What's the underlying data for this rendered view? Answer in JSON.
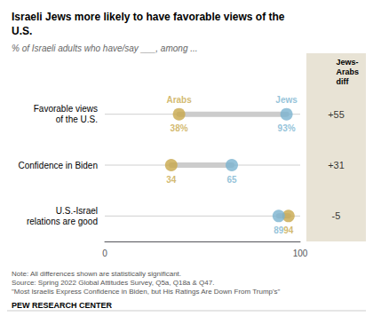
{
  "chart_data": {
    "type": "dumbbell",
    "title": "Israeli Jews more likely to have favorable views of the\nU.S.",
    "subtitle": "% of Israeli adults who have/say ___, among ...",
    "categories": [
      "Favorable views\nof the U.S.",
      "Confidence in Biden",
      "U.S.-Israel\nrelations are good"
    ],
    "series": [
      {
        "name": "Arabs",
        "color": "#c8a84b",
        "values": [
          38,
          34,
          94
        ],
        "value_labels": [
          "38%",
          "34",
          "94"
        ]
      },
      {
        "name": "Jews",
        "color": "#7ab3d0",
        "values": [
          93,
          65,
          89
        ],
        "value_labels": [
          "93%",
          "65",
          "89"
        ]
      }
    ],
    "xlim": [
      0,
      100
    ],
    "xticks": [
      0,
      100
    ],
    "grid": false,
    "data_labels": true,
    "diff_header": "Jews-\nArabs\ndiff",
    "diff_labels": [
      "+55",
      "+31",
      "-5"
    ],
    "note": "Note: All differences shown are statistically significant.\nSource: Spring 2022 Global Attitudes Survey, Q5a, Q18a & Q47.\n\"Most Israelis Express Confidence in Biden, but His Ratings Are Down From Trump's\"",
    "footer": "PEW RESEARCH CENTER"
  }
}
